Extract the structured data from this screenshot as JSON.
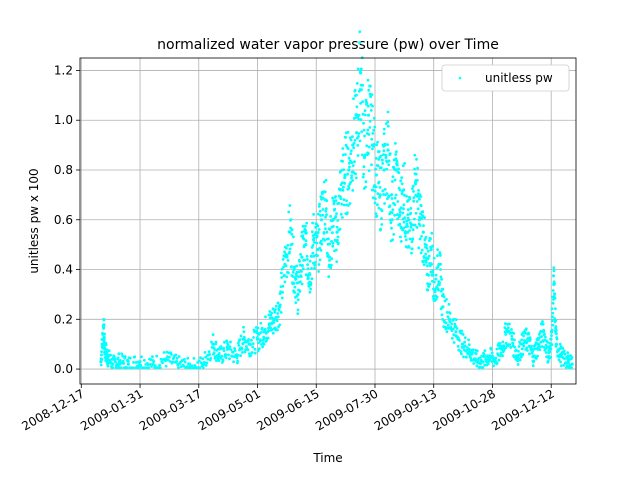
{
  "chart_data": {
    "type": "scatter",
    "title": "normalized water vapor pressure (pw) over Time",
    "xlabel": "Time",
    "ylabel": "unitless pw x 100",
    "x_tick_labels": [
      "2008-12-17",
      "2009-01-31",
      "2009-03-17",
      "2009-05-01",
      "2009-06-15",
      "2009-07-30",
      "2009-09-13",
      "2009-10-28",
      "2009-12-12"
    ],
    "y_tick_labels": [
      "0.0",
      "0.2",
      "0.4",
      "0.6",
      "0.8",
      "1.0",
      "1.2"
    ],
    "xlim": [
      "2008-12-16",
      "2009-12-31"
    ],
    "ylim": [
      -0.06,
      1.25
    ],
    "grid": true,
    "legend_position": "top-right",
    "series": [
      {
        "name": "unitless pw",
        "color": "#00ffff",
        "x": [
          "2009-01-01",
          "2009-01-03",
          "2009-01-04",
          "2009-01-06",
          "2009-01-10",
          "2009-01-15",
          "2009-01-22",
          "2009-01-31",
          "2009-02-10",
          "2009-02-20",
          "2009-03-01",
          "2009-03-10",
          "2009-03-20",
          "2009-03-28",
          "2009-04-02",
          "2009-04-08",
          "2009-04-15",
          "2009-04-20",
          "2009-04-25",
          "2009-05-01",
          "2009-05-06",
          "2009-05-10",
          "2009-05-14",
          "2009-05-18",
          "2009-05-22",
          "2009-05-26",
          "2009-05-29",
          "2009-06-01",
          "2009-06-04",
          "2009-06-07",
          "2009-06-10",
          "2009-06-13",
          "2009-06-16",
          "2009-06-19",
          "2009-06-22",
          "2009-06-25",
          "2009-06-28",
          "2009-07-01",
          "2009-07-04",
          "2009-07-07",
          "2009-07-10",
          "2009-07-13",
          "2009-07-16",
          "2009-07-19",
          "2009-07-22",
          "2009-07-25",
          "2009-07-28",
          "2009-07-31",
          "2009-08-03",
          "2009-08-06",
          "2009-08-09",
          "2009-08-12",
          "2009-08-15",
          "2009-08-18",
          "2009-08-21",
          "2009-08-24",
          "2009-08-27",
          "2009-08-30",
          "2009-09-02",
          "2009-09-05",
          "2009-09-08",
          "2009-09-11",
          "2009-09-14",
          "2009-09-17",
          "2009-09-20",
          "2009-09-25",
          "2009-09-30",
          "2009-10-05",
          "2009-10-10",
          "2009-10-15",
          "2009-10-20",
          "2009-10-25",
          "2009-10-30",
          "2009-11-04",
          "2009-11-08",
          "2009-11-12",
          "2009-11-16",
          "2009-11-20",
          "2009-11-24",
          "2009-11-28",
          "2009-12-02",
          "2009-12-06",
          "2009-12-10",
          "2009-12-12",
          "2009-12-14",
          "2009-12-16",
          "2009-12-20",
          "2009-12-25",
          "2009-12-28"
        ],
        "y": [
          0.03,
          0.17,
          0.08,
          0.05,
          0.02,
          0.03,
          0.02,
          0.03,
          0.02,
          0.04,
          0.02,
          0.01,
          0.02,
          0.1,
          0.05,
          0.08,
          0.05,
          0.12,
          0.1,
          0.12,
          0.15,
          0.18,
          0.2,
          0.25,
          0.42,
          0.55,
          0.4,
          0.3,
          0.45,
          0.5,
          0.38,
          0.52,
          0.48,
          0.6,
          0.68,
          0.45,
          0.6,
          0.55,
          0.72,
          0.78,
          0.8,
          0.9,
          0.95,
          1.19,
          0.85,
          1.02,
          0.9,
          0.78,
          0.7,
          0.8,
          0.88,
          0.6,
          0.8,
          0.62,
          0.72,
          0.55,
          0.58,
          0.75,
          0.6,
          0.55,
          0.38,
          0.48,
          0.32,
          0.42,
          0.25,
          0.2,
          0.15,
          0.1,
          0.08,
          0.04,
          0.03,
          0.05,
          0.04,
          0.08,
          0.15,
          0.12,
          0.05,
          0.1,
          0.12,
          0.05,
          0.1,
          0.15,
          0.05,
          0.1,
          0.34,
          0.1,
          0.05,
          0.03,
          0.02
        ]
      }
    ]
  }
}
